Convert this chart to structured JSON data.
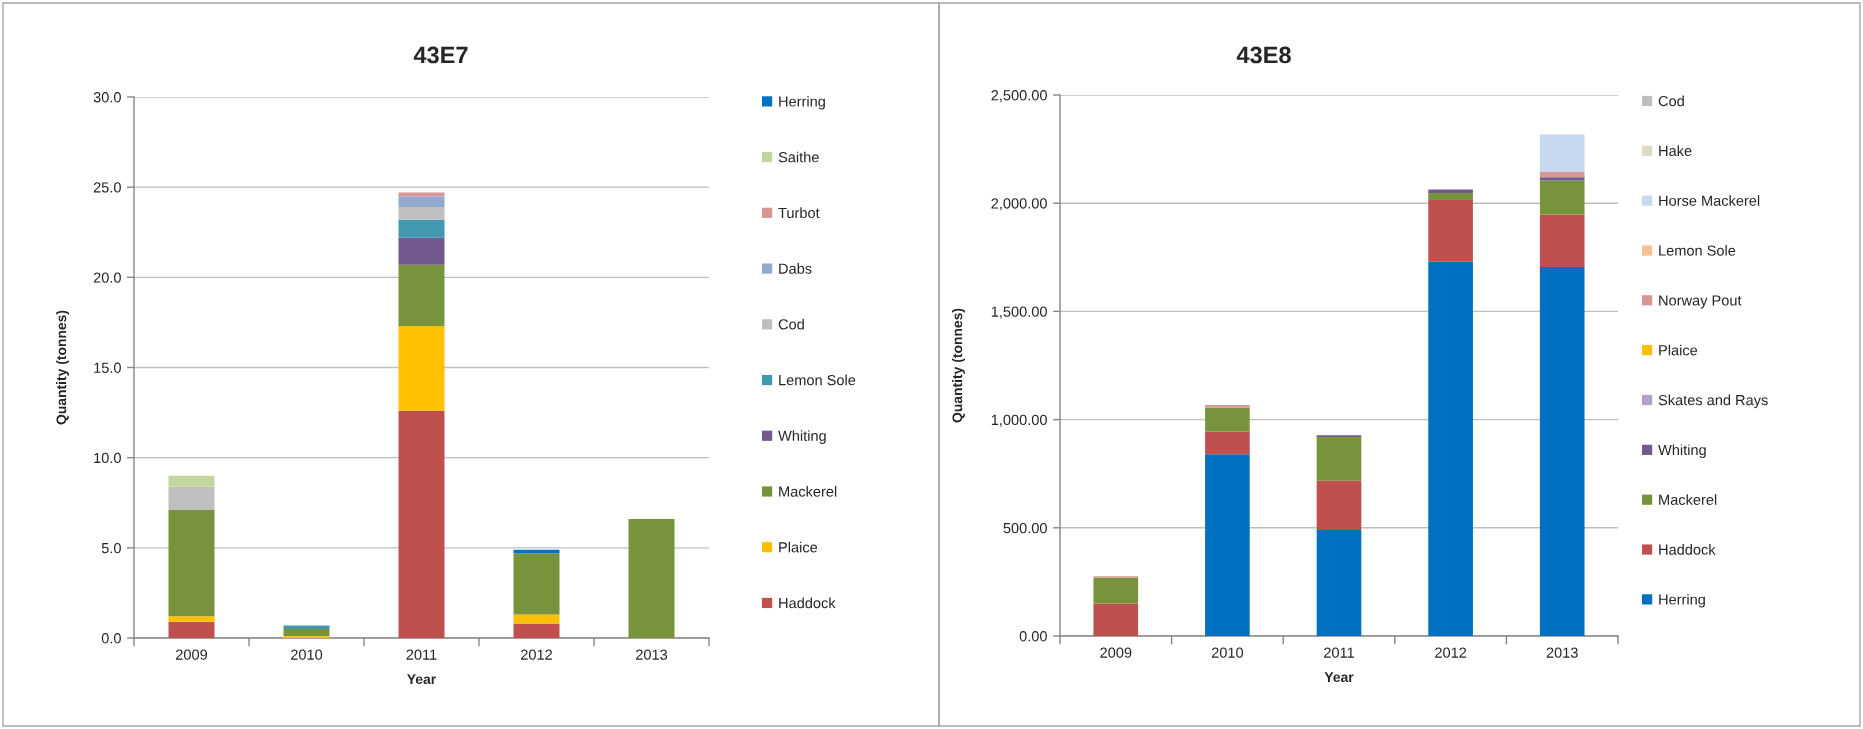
{
  "chart_data": [
    {
      "type": "bar",
      "stacked": true,
      "title": "43E7",
      "xlabel": "Year",
      "ylabel": "Quantity (tonnes)",
      "categories": [
        "2009",
        "2010",
        "2011",
        "2012",
        "2013"
      ],
      "series": [
        {
          "name": "Haddock",
          "color": "#c0504d",
          "values": [
            0.9,
            null,
            12.6,
            0.8,
            null
          ]
        },
        {
          "name": "Plaice",
          "color": "#ffc000",
          "values": [
            0.3,
            0.1,
            4.7,
            0.5,
            null
          ]
        },
        {
          "name": "Mackerel",
          "color": "#77933c",
          "values": [
            5.9,
            0.4,
            3.4,
            3.4,
            6.6
          ]
        },
        {
          "name": "Whiting",
          "color": "#71588f",
          "values": [
            null,
            null,
            1.5,
            null,
            null
          ]
        },
        {
          "name": "Lemon Sole",
          "color": "#4198af",
          "values": [
            null,
            0.2,
            1.0,
            null,
            null
          ]
        },
        {
          "name": "Cod",
          "color": "#bfbfbf",
          "values": [
            1.3,
            null,
            0.7,
            null,
            null
          ]
        },
        {
          "name": "Dabs",
          "color": "#93a9cf",
          "values": [
            null,
            null,
            0.6,
            null,
            null
          ]
        },
        {
          "name": "Turbot",
          "color": "#d99694",
          "values": [
            null,
            null,
            0.2,
            null,
            null
          ]
        },
        {
          "name": "Saithe",
          "color": "#c3d69b",
          "values": [
            0.6,
            null,
            null,
            null,
            null
          ]
        },
        {
          "name": "Herring",
          "color": "#0070c0",
          "values": [
            null,
            null,
            null,
            0.2,
            null
          ]
        }
      ],
      "ylim": [
        0,
        30
      ],
      "yticks": [
        {
          "value": 0,
          "label": "0.0"
        },
        {
          "value": 5,
          "label": "5.0"
        },
        {
          "value": 10,
          "label": "10.0"
        },
        {
          "value": 15,
          "label": "15.0"
        },
        {
          "value": 20,
          "label": "20.0"
        },
        {
          "value": 25,
          "label": "25.0"
        },
        {
          "value": 30,
          "label": "30.0"
        }
      ],
      "grid": "y",
      "legend": "right"
    },
    {
      "type": "bar",
      "stacked": true,
      "title": "43E8",
      "xlabel": "Year",
      "ylabel": "Quantity (tonnes)",
      "categories": [
        "2009",
        "2010",
        "2011",
        "2012",
        "2013"
      ],
      "series": [
        {
          "name": "Herring",
          "color": "#0070c0",
          "values": [
            null,
            840,
            490,
            1730,
            1705
          ]
        },
        {
          "name": "Haddock",
          "color": "#c0504d",
          "values": [
            150,
            105,
            227,
            285,
            243
          ]
        },
        {
          "name": "Mackerel",
          "color": "#77933c",
          "values": [
            120,
            110,
            203,
            32,
            157
          ]
        },
        {
          "name": "Whiting",
          "color": "#71588f",
          "values": [
            null,
            null,
            8,
            16,
            15
          ]
        },
        {
          "name": "Skates and Rays",
          "color": "#b3a2c7",
          "values": [
            null,
            null,
            null,
            null,
            null
          ]
        },
        {
          "name": "Plaice",
          "color": "#ffc000",
          "values": [
            null,
            null,
            null,
            null,
            null
          ]
        },
        {
          "name": "Norway Pout",
          "color": "#da9694",
          "values": [
            6,
            12,
            null,
            null,
            24
          ]
        },
        {
          "name": "Lemon Sole",
          "color": "#fac090",
          "values": [
            null,
            null,
            null,
            null,
            null
          ]
        },
        {
          "name": "Horse Mackerel",
          "color": "#c6d9f1",
          "values": [
            null,
            null,
            null,
            null,
            174
          ]
        },
        {
          "name": "Hake",
          "color": "#ddd9c4",
          "values": [
            null,
            null,
            null,
            null,
            null
          ]
        },
        {
          "name": "Cod",
          "color": "#bfbfbf",
          "values": [
            null,
            null,
            null,
            null,
            null
          ]
        }
      ],
      "ylim": [
        0,
        2500
      ],
      "yticks": [
        {
          "value": 0,
          "label": "0.00"
        },
        {
          "value": 500,
          "label": "500.00"
        },
        {
          "value": 1000,
          "label": "1,000.00"
        },
        {
          "value": 1500,
          "label": "1,500.00"
        },
        {
          "value": 2000,
          "label": "2,000.00"
        },
        {
          "value": 2500,
          "label": "2,500.00"
        }
      ],
      "grid": "y",
      "legend": "right"
    }
  ]
}
